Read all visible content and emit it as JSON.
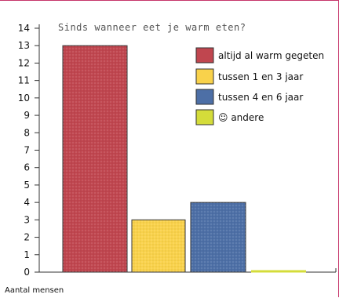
{
  "chart_data": {
    "type": "bar",
    "title": "Sinds wanneer eet je warm eten?",
    "xlabel": "",
    "ylabel": "Aantal mensen",
    "ylim": [
      0,
      14
    ],
    "yticks": [
      0,
      1,
      2,
      3,
      4,
      5,
      6,
      7,
      8,
      9,
      10,
      11,
      12,
      13,
      14
    ],
    "grid": false,
    "legend_position": "top-right",
    "categories": [
      "altijd al warm gegeten",
      "tussen 1 en 3 jaar",
      "tussen 4 en 6 jaar",
      "☺ andere"
    ],
    "values": [
      13,
      3,
      4,
      0
    ],
    "colors": [
      "#c0464f",
      "#f9d24b",
      "#4d6fa6",
      "#d4dc3a"
    ]
  }
}
